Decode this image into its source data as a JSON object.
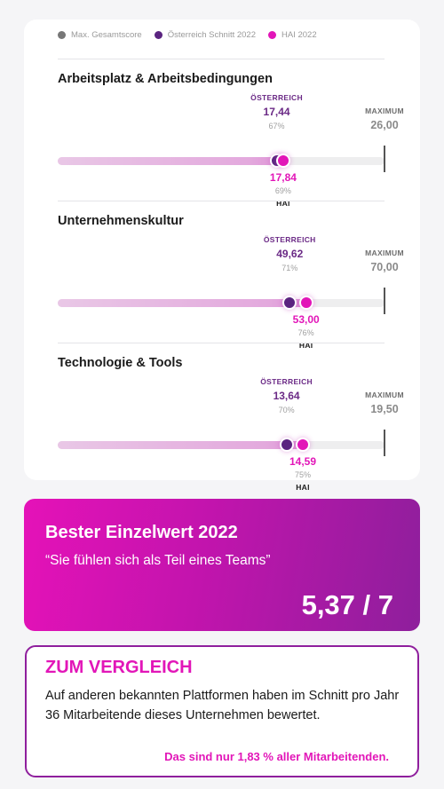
{
  "legend": [
    {
      "label": "Max. Gesamtscore",
      "color": "#777777"
    },
    {
      "label": "Österreich Schnitt 2022",
      "color": "#5b2480"
    },
    {
      "label": "HAI 2022",
      "color": "#e216b8"
    }
  ],
  "sections": [
    {
      "title": "Arbeitsplatz & Arbeitsbedingungen",
      "at_label": "ÖSTERREICH",
      "at_value": "17,44",
      "at_pct": "67%",
      "hai_value": "17,84",
      "hai_pct": "69%",
      "hai_label": "HAI",
      "max_label": "MAXIMUM",
      "max_value": "26,00",
      "at_fraction": 0.67,
      "hai_fraction": 0.69
    },
    {
      "title": "Unternehmenskultur",
      "at_label": "ÖSTERREICH",
      "at_value": "49,62",
      "at_pct": "71%",
      "hai_value": "53,00",
      "hai_pct": "76%",
      "hai_label": "HAI",
      "max_label": "MAXIMUM",
      "max_value": "70,00",
      "at_fraction": 0.71,
      "hai_fraction": 0.76
    },
    {
      "title": "Technologie & Tools",
      "at_label": "ÖSTERREICH",
      "at_value": "13,64",
      "at_pct": "70%",
      "hai_value": "14,59",
      "hai_pct": "75%",
      "hai_label": "HAI",
      "max_label": "MAXIMUM",
      "max_value": "19,50",
      "at_fraction": 0.7,
      "hai_fraction": 0.75
    }
  ],
  "best": {
    "title": "Bester Einzelwert 2022",
    "quote": "“Sie fühlen sich als Teil eines Teams”",
    "score": "5,37 / 7"
  },
  "comparison": {
    "title": "ZUM VERGLEICH",
    "text": "Auf anderen bekannten Plattformen haben im Schnitt pro Jahr 36 Mitarbeitende dieses Unternehmen bewertet.",
    "note": "Das sind nur 1,83 % aller Mitarbeitenden."
  }
}
